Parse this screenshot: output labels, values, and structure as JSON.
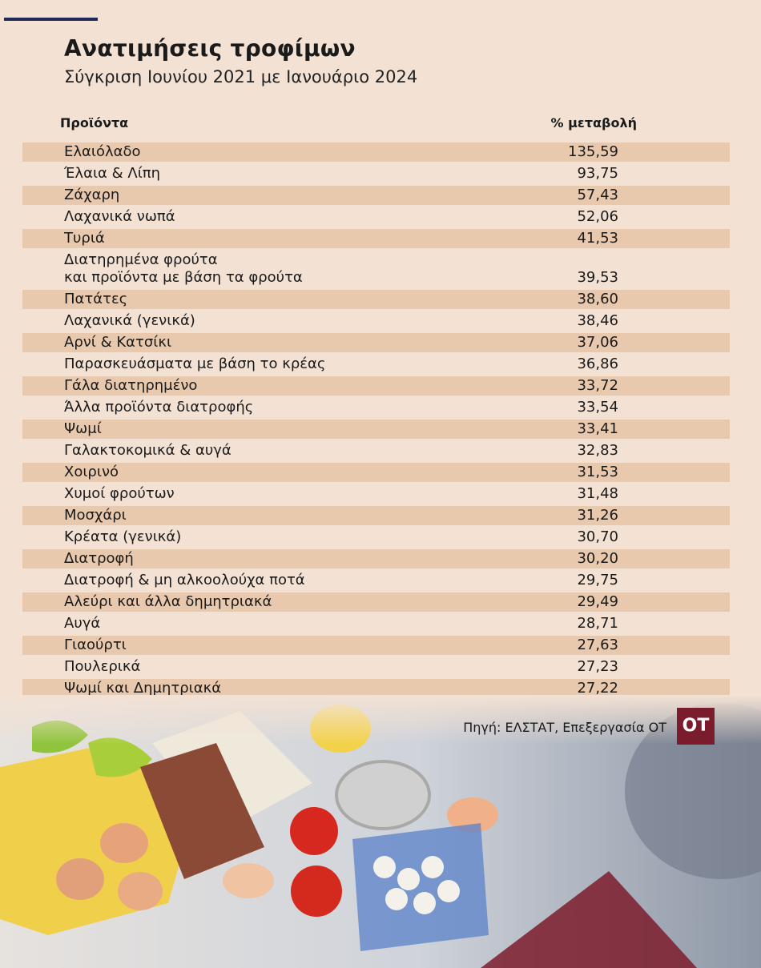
{
  "header": {
    "title": "Ανατιμήσεις τροφίμων",
    "subtitle": "Σύγκριση Ιουνίου 2021 με Ιανουάριο 2024"
  },
  "table": {
    "columns": [
      "Προϊόντα",
      "% μεταβολή"
    ],
    "rows": [
      [
        "Ελαιόλαδο",
        "135,59"
      ],
      [
        "Έλαια & Λίπη",
        "93,75"
      ],
      [
        "Ζάχαρη",
        "57,43"
      ],
      [
        "Λαχανικά νωπά",
        "52,06"
      ],
      [
        "Τυριά",
        "41,53"
      ],
      [
        [
          "Διατηρημένα φρούτα",
          "και προϊόντα με βάση τα φρούτα"
        ],
        "39,53"
      ],
      [
        "Πατάτες",
        "38,60"
      ],
      [
        "Λαχανικά (γενικά)",
        "38,46"
      ],
      [
        "Αρνί & Κατσίκι",
        "37,06"
      ],
      [
        "Παρασκευάσματα με βάση το κρέας",
        "36,86"
      ],
      [
        "Γάλα διατηρημένο",
        "33,72"
      ],
      [
        "Άλλα προϊόντα διατροφής",
        "33,54"
      ],
      [
        "Ψωμί",
        "33,41"
      ],
      [
        "Γαλακτοκομικά & αυγά",
        "32,83"
      ],
      [
        "Χοιρινό",
        "31,53"
      ],
      [
        "Χυμοί φρούτων",
        "31,48"
      ],
      [
        "Μοσχάρι",
        "31,26"
      ],
      [
        "Κρέατα (γενικά)",
        "30,70"
      ],
      [
        "Διατροφή",
        "30,20"
      ],
      [
        "Διατροφή & μη αλκοολούχα ποτά",
        "29,75"
      ],
      [
        "Αλεύρι και άλλα δημητριακά",
        "29,49"
      ],
      [
        "Αυγά",
        "28,71"
      ],
      [
        "Γιαούρτι",
        "27,63"
      ],
      [
        "Πουλερικά",
        "27,23"
      ],
      [
        "Ψωμί και Δημητριακά",
        "27,22"
      ]
    ]
  },
  "footer": {
    "source": "Πηγή: ΕΛΣΤΑΤ, Επεξεργασία ΟΤ",
    "logo": "ΟΤ"
  }
}
